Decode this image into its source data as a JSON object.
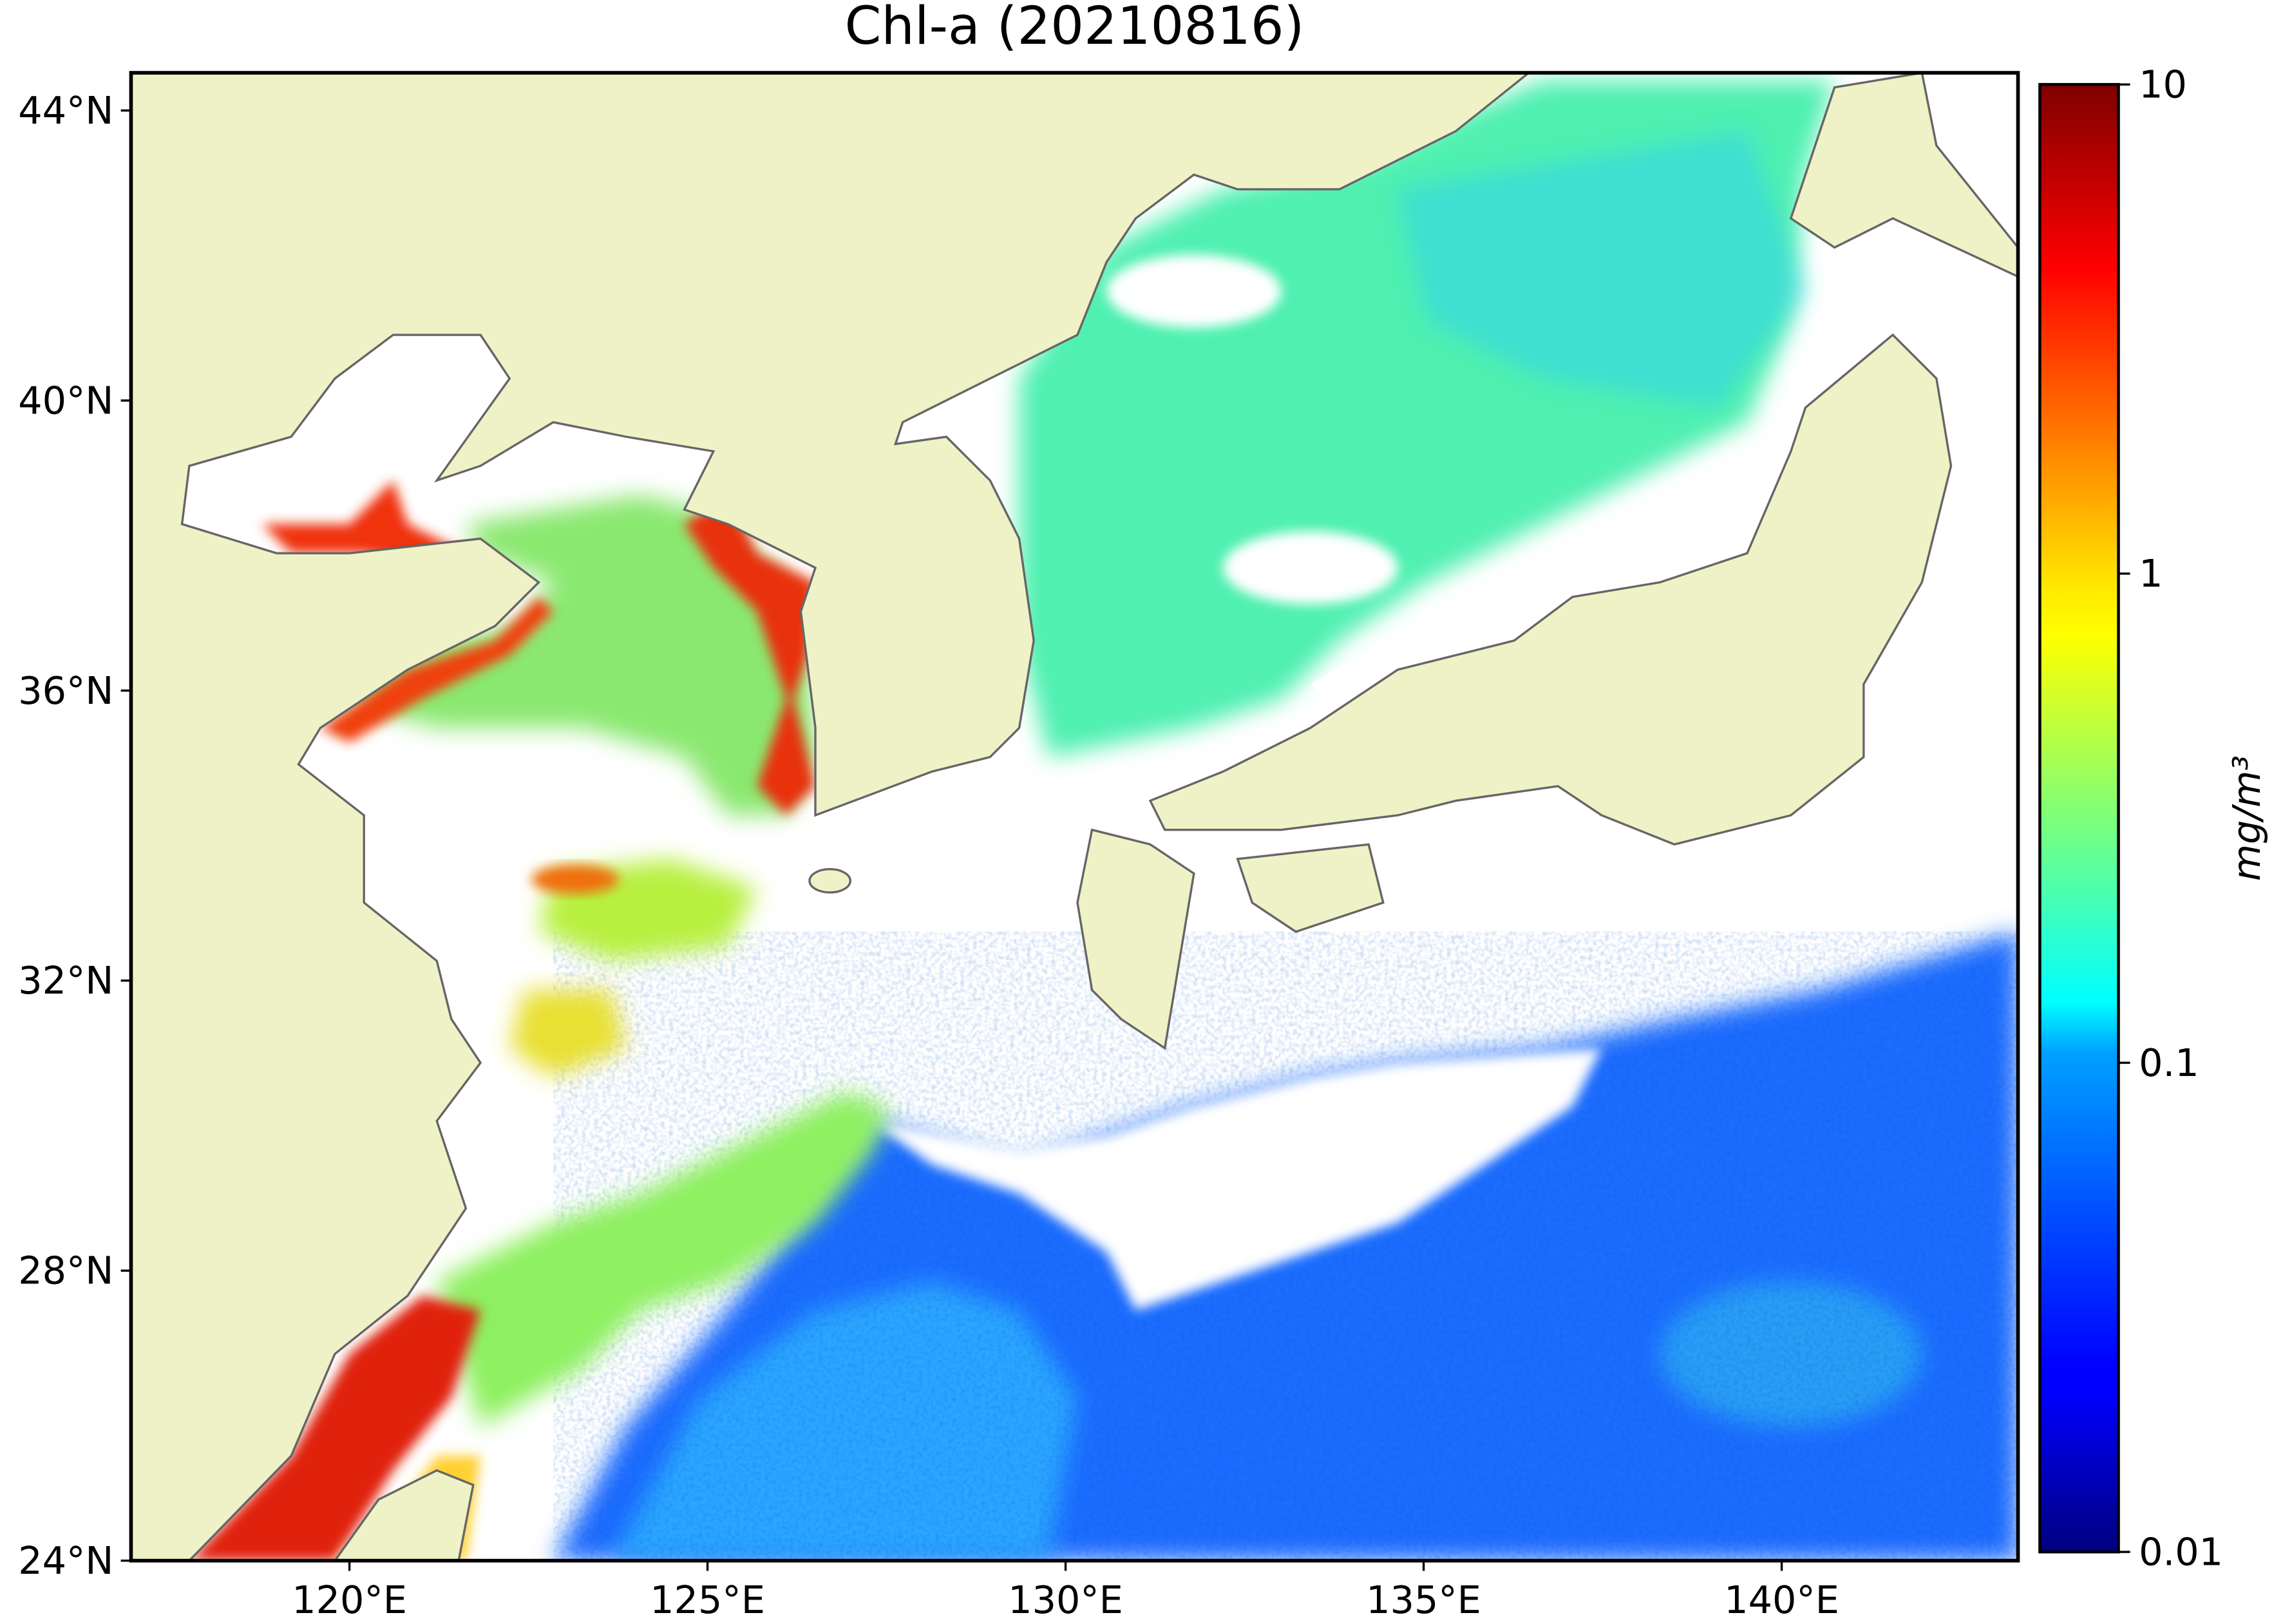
{
  "map": {
    "title": "Chl-a (20210816)",
    "xlim": [
      116.95,
      143.3
    ],
    "ylim": [
      24,
      44.52
    ],
    "lon_ticks": [
      {
        "value": 120,
        "label": "120°E"
      },
      {
        "value": 125,
        "label": "125°E"
      },
      {
        "value": 130,
        "label": "130°E"
      },
      {
        "value": 135,
        "label": "135°E"
      },
      {
        "value": 140,
        "label": "140°E"
      }
    ],
    "lat_ticks": [
      {
        "value": 24,
        "label": "24°N"
      },
      {
        "value": 28,
        "label": "28°N"
      },
      {
        "value": 32,
        "label": "32°N"
      },
      {
        "value": 36,
        "label": "36°N"
      },
      {
        "value": 40,
        "label": "40°N"
      },
      {
        "value": 44,
        "label": "44°N"
      }
    ],
    "colorbar": {
      "label": "mg/m³",
      "scale": "log",
      "lim": [
        0.01,
        10
      ],
      "ticks": [
        0.01,
        0.1,
        1,
        10
      ],
      "colormap": "jet"
    }
  }
}
